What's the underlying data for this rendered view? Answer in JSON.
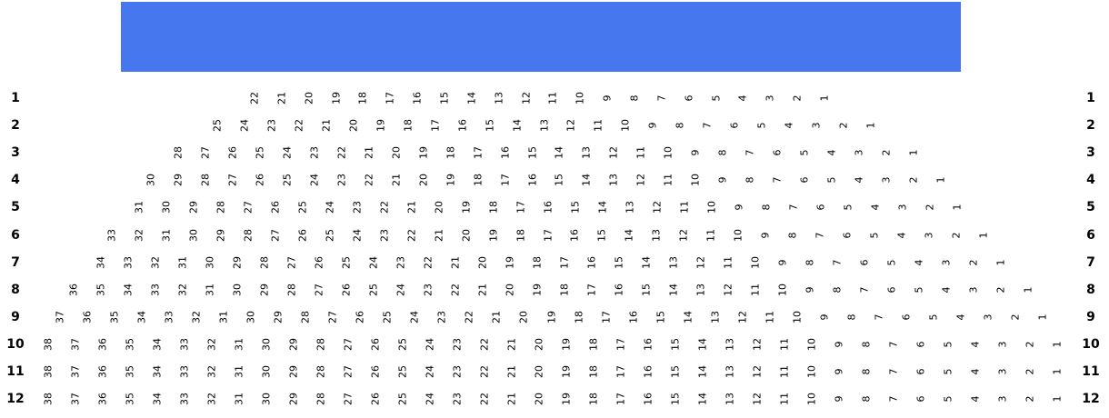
{
  "stage": {
    "label": "",
    "color": "#4677ef"
  },
  "rows": [
    {
      "label": "1",
      "seats": 22
    },
    {
      "label": "2",
      "seats": 25
    },
    {
      "label": "3",
      "seats": 28
    },
    {
      "label": "4",
      "seats": 30
    },
    {
      "label": "5",
      "seats": 31
    },
    {
      "label": "6",
      "seats": 33
    },
    {
      "label": "7",
      "seats": 34
    },
    {
      "label": "8",
      "seats": 36
    },
    {
      "label": "9",
      "seats": 37
    },
    {
      "label": "10",
      "seats": 38
    },
    {
      "label": "11",
      "seats": 38
    },
    {
      "label": "12",
      "seats": 38
    }
  ],
  "seat_order": "descending-left-to-right"
}
